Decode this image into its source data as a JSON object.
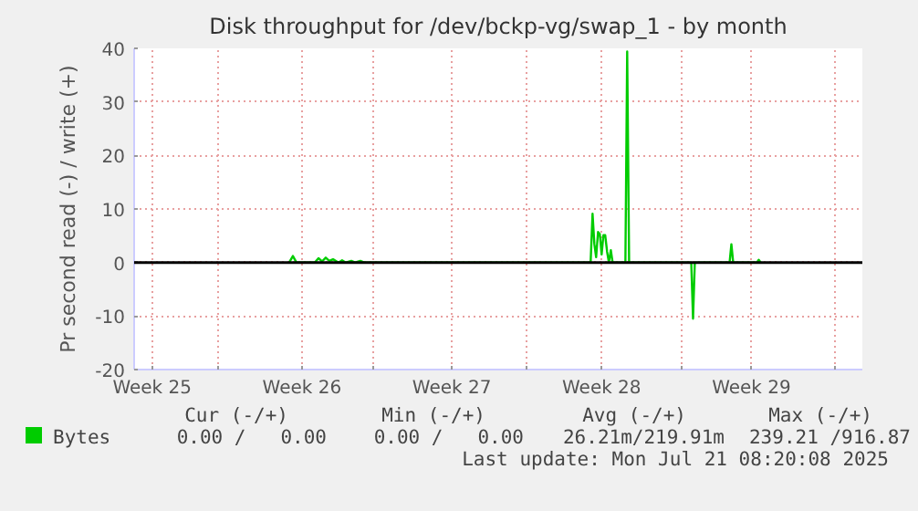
{
  "chart_data": {
    "type": "line",
    "title": "Disk throughput for /dev/bckp-vg/swap_1 - by month",
    "ylabel": "Pr second read (-) / write (+)",
    "xlim": [
      "2025-06-17T07:50",
      "2025-07-21T08:20"
    ],
    "ylim": [
      -20,
      40
    ],
    "xticks": [
      {
        "value": "2025-06-18T04:00",
        "label": "Week 25"
      },
      {
        "value": "2025-06-21T06:00",
        "label": null
      },
      {
        "value": "2025-06-25T04:00",
        "label": "Week 26"
      },
      {
        "value": "2025-06-28T12:00",
        "label": null
      },
      {
        "value": "2025-07-02T04:00",
        "label": "Week 27"
      },
      {
        "value": "2025-07-05T16:00",
        "label": null
      },
      {
        "value": "2025-07-09T04:00",
        "label": "Week 28"
      },
      {
        "value": "2025-07-12T22:00",
        "label": null
      },
      {
        "value": "2025-07-16T04:00",
        "label": "Week 29"
      },
      {
        "value": "2025-07-20T02:00",
        "label": null
      }
    ],
    "yticks": [
      -20,
      -10,
      0,
      10,
      20,
      30,
      40
    ],
    "grid": true,
    "legend": "bottom left",
    "ref_lines": [
      {
        "axis": "y",
        "value": 0,
        "label": null,
        "color": "#000000"
      }
    ],
    "series": [
      {
        "name": "Bytes",
        "color": "#00cc00",
        "x": [
          "2025-06-24T13:40",
          "2025-06-24T17:50",
          "2025-06-24T21:50",
          "2025-06-25T18:20",
          "2025-06-25T22:30",
          "2025-06-26T02:30",
          "2025-06-26T06:40",
          "2025-06-26T10:40",
          "2025-06-26T14:50",
          "2025-06-26T21:00",
          "2025-06-27T01:00",
          "2025-06-27T05:10",
          "2025-06-27T11:20",
          "2025-06-27T15:30",
          "2025-06-27T21:30",
          "2025-06-28T01:40",
          "2025-07-08T15:40",
          "2025-07-08T17:50",
          "2025-07-08T19:50",
          "2025-07-08T21:50",
          "2025-07-09T00:00",
          "2025-07-09T02:00",
          "2025-07-09T04:00",
          "2025-07-09T06:00",
          "2025-07-09T08:00",
          "2025-07-09T10:10",
          "2025-07-09T12:10",
          "2025-07-09T14:20",
          "2025-07-09T16:20",
          "2025-07-10T06:40",
          "2025-07-10T08:40",
          "2025-07-10T10:50",
          "2025-07-13T08:30",
          "2025-07-13T10:30",
          "2025-07-13T12:30",
          "2025-07-15T03:30",
          "2025-07-15T05:30",
          "2025-07-15T07:30",
          "2025-07-16T10:10",
          "2025-07-16T12:10",
          "2025-07-16T14:20"
        ],
        "values": [
          0,
          1.2,
          0,
          0,
          0.8,
          0.2,
          0.9,
          0.3,
          0.6,
          0,
          0.4,
          0,
          0.3,
          0,
          0.3,
          0,
          0,
          9.1,
          3.5,
          1,
          5.7,
          5.3,
          1.5,
          5.1,
          5.1,
          2,
          0,
          2.3,
          0,
          0,
          39.4,
          0,
          0,
          -10.5,
          0,
          0,
          3.4,
          0,
          0,
          0.5,
          0
        ]
      }
    ],
    "annotations": [
      "Cur (-/+)",
      "Min (-/+)",
      "Avg (-/+)",
      "Max (-/+)",
      "0.00 /   0.00",
      "0.00 /   0.00",
      "26.21m/219.91m",
      "239.21 /916.87",
      "Last update: Mon Jul 21 08:20:08 2025"
    ]
  }
}
